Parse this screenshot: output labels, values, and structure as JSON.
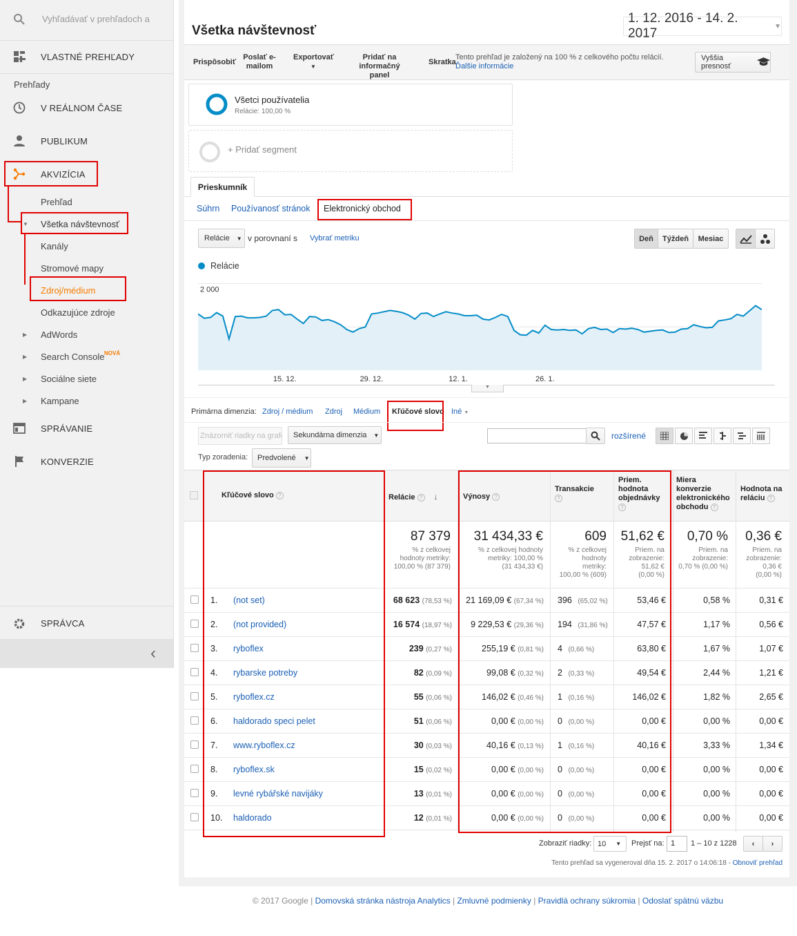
{
  "sidebar": {
    "search_placeholder": "Vyhľadávať v prehľadoch a",
    "custom_reports": "VLASTNÉ PREHĽADY",
    "reports_heading": "Prehľady",
    "realtime": "V REÁLNOM ČASE",
    "audience": "PUBLIKUM",
    "acquisition": "AKVIZÍCIA",
    "overview": "Prehľad",
    "all_traffic": "Všetka návštevnosť",
    "channels": "Kanály",
    "treemaps": "Stromové mapy",
    "source_medium": "Zdroj/médium",
    "referrals": "Odkazujúce zdroje",
    "adwords": "AdWords",
    "search_console": "Search Console",
    "new_badge": "NOVÁ",
    "social": "Sociálne siete",
    "campaigns": "Kampane",
    "behavior": "SPRÁVANIE",
    "conversions": "KONVERZIE",
    "admin": "SPRÁVCA",
    "collapse_glyph": "‹"
  },
  "header": {
    "title": "Všetka návštevnosť",
    "date_range": "1. 12. 2016 - 14. 2. 2017"
  },
  "toolbar": {
    "customize": "Prispôsobiť",
    "email_1": "Poslať e-",
    "email_2": "mailom",
    "export": "Exportovať",
    "dashboard_1": "Pridať na informačný",
    "dashboard_2": "panel",
    "shortcut": "Skratka",
    "sampling_note": "Tento prehľad je založený na 100 % z celkového počtu relácií.",
    "more_info": "Ďalšie informácie",
    "precision": "Vyššia presnosť"
  },
  "segments": {
    "all_users": "Všetci používatelia",
    "sessions_pct": "Relácie: 100,00 %",
    "add_segment": "+ Pridať segment"
  },
  "explorer": {
    "tab": "Prieskumník",
    "subtabs": [
      "Súhrn",
      "Používanosť stránok",
      "Elektronický obchod"
    ]
  },
  "chart_controls": {
    "metric": "Relácie",
    "vs": "v porovnaní s",
    "select_metric": "Vybrať metriku",
    "day": "Deň",
    "week": "Týždeň",
    "month": "Mesiac"
  },
  "chart_data": {
    "type": "line",
    "series": [
      {
        "name": "Relácie",
        "color": "#058dc7",
        "values": [
          1300,
          1200,
          1220,
          1330,
          1250,
          720,
          1240,
          1250,
          1210,
          1210,
          1220,
          1250,
          1380,
          1400,
          1280,
          1290,
          1180,
          1080,
          1240,
          1230,
          1150,
          1170,
          1120,
          1050,
          940,
          880,
          960,
          1000,
          1300,
          1320,
          1350,
          1380,
          1360,
          1330,
          1270,
          1180,
          1310,
          1320,
          1240,
          1300,
          1350,
          1320,
          1300,
          1260,
          1260,
          1270,
          1180,
          1160,
          1220,
          1290,
          1240,
          920,
          820,
          810,
          920,
          860,
          1040,
          940,
          930,
          940,
          920,
          930,
          840,
          960,
          990,
          940,
          950,
          870,
          960,
          950,
          970,
          940,
          880,
          900,
          920,
          930,
          870,
          880,
          950,
          960,
          1050,
          1010,
          980,
          990,
          1140,
          1160,
          1190,
          1290,
          1250,
          1370,
          1490,
          1400
        ]
      }
    ],
    "x_ticks": [
      "15. 12.",
      "29. 12.",
      "12. 1.",
      "26. 1."
    ],
    "y_ticks": [
      "2 000",
      "1 000"
    ],
    "ylim": [
      0,
      2200
    ]
  },
  "dimensions": {
    "label": "Primárna dimenzia:",
    "items": [
      "Zdroj / médium",
      "Zdroj",
      "Médium",
      "Kľúčové slovo",
      "Iné"
    ]
  },
  "table_controls": {
    "plot_rows": "Znázorniť riadky na grafe",
    "secondary": "Sekundárna dimenzia",
    "advanced": "rozšírené",
    "sort_label": "Typ zoradenia:",
    "sort_value": "Predvolené"
  },
  "table": {
    "headers": {
      "keyword": "Kľúčové slovo",
      "sessions": "Relácie",
      "revenue": "Výnosy",
      "transactions": "Transakcie",
      "aov_1": "Priem.",
      "aov_2": "hodnota",
      "aov_3": "objednávky",
      "cr_1": "Miera",
      "cr_2": "konverzie",
      "cr_3": "elektronického",
      "cr_4": "obchodu",
      "per_session_1": "Hodnota na",
      "per_session_2": "reláciu"
    },
    "totals": {
      "sessions": "87 379",
      "sessions_sub": [
        "% z celkovej",
        "hodnoty metriky:",
        "100,00 % (87 379)"
      ],
      "revenue": "31 434,33 €",
      "revenue_sub": [
        "% z celkovej hodnoty",
        "metriky: 100,00 %",
        "(31 434,33 €)"
      ],
      "transactions": "609",
      "transactions_sub": [
        "% z celkovej",
        "hodnoty",
        "metriky:",
        "100,00 % (609)"
      ],
      "aov": "51,62 €",
      "aov_sub": [
        "Priem. na",
        "zobrazenie:",
        "51,62 €",
        "(0,00 %)"
      ],
      "cr": "0,70 %",
      "cr_sub": [
        "Priem. na",
        "zobrazenie:",
        "0,70 % (0,00 %)"
      ],
      "per_session": "0,36 €",
      "per_session_sub": [
        "Priem. na",
        "zobrazenie:",
        "0,36 €",
        "(0,00 %)"
      ]
    },
    "rows": [
      {
        "n": "1.",
        "kw": "(not set)",
        "s": "68 623",
        "sp": "(78,53 %)",
        "rev": "21 169,09 €",
        "revp": "(67,34 %)",
        "t": "396",
        "tp": "(65,02 %)",
        "aov": "53,46 €",
        "cr": "0,58 %",
        "ps": "0,31 €"
      },
      {
        "n": "2.",
        "kw": "(not provided)",
        "s": "16 574",
        "sp": "(18,97 %)",
        "rev": "9 229,53 €",
        "revp": "(29,36 %)",
        "t": "194",
        "tp": "(31,86 %)",
        "aov": "47,57 €",
        "cr": "1,17 %",
        "ps": "0,56 €"
      },
      {
        "n": "3.",
        "kw": "ryboflex",
        "s": "239",
        "sp": "(0,27 %)",
        "rev": "255,19 €",
        "revp": "(0,81 %)",
        "t": "4",
        "tp": "(0,66 %)",
        "aov": "63,80 €",
        "cr": "1,67 %",
        "ps": "1,07 €"
      },
      {
        "n": "4.",
        "kw": "rybarske potreby",
        "s": "82",
        "sp": "(0,09 %)",
        "rev": "99,08 €",
        "revp": "(0,32 %)",
        "t": "2",
        "tp": "(0,33 %)",
        "aov": "49,54 €",
        "cr": "2,44 %",
        "ps": "1,21 €"
      },
      {
        "n": "5.",
        "kw": "ryboflex.cz",
        "s": "55",
        "sp": "(0,06 %)",
        "rev": "146,02 €",
        "revp": "(0,46 %)",
        "t": "1",
        "tp": "(0,16 %)",
        "aov": "146,02 €",
        "cr": "1,82 %",
        "ps": "2,65 €"
      },
      {
        "n": "6.",
        "kw": "haldorado speci pelet",
        "s": "51",
        "sp": "(0,06 %)",
        "rev": "0,00 €",
        "revp": "(0,00 %)",
        "t": "0",
        "tp": "(0,00 %)",
        "aov": "0,00 €",
        "cr": "0,00 %",
        "ps": "0,00 €"
      },
      {
        "n": "7.",
        "kw": "www.ryboflex.cz",
        "s": "30",
        "sp": "(0,03 %)",
        "rev": "40,16 €",
        "revp": "(0,13 %)",
        "t": "1",
        "tp": "(0,16 %)",
        "aov": "40,16 €",
        "cr": "3,33 %",
        "ps": "1,34 €"
      },
      {
        "n": "8.",
        "kw": "ryboflex.sk",
        "s": "15",
        "sp": "(0,02 %)",
        "rev": "0,00 €",
        "revp": "(0,00 %)",
        "t": "0",
        "tp": "(0,00 %)",
        "aov": "0,00 €",
        "cr": "0,00 %",
        "ps": "0,00 €"
      },
      {
        "n": "9.",
        "kw": "levné rybářské navijáky",
        "s": "13",
        "sp": "(0,01 %)",
        "rev": "0,00 €",
        "revp": "(0,00 %)",
        "t": "0",
        "tp": "(0,00 %)",
        "aov": "0,00 €",
        "cr": "0,00 %",
        "ps": "0,00 €"
      },
      {
        "n": "10.",
        "kw": "haldorado",
        "s": "12",
        "sp": "(0,01 %)",
        "rev": "0,00 €",
        "revp": "(0,00 %)",
        "t": "0",
        "tp": "(0,00 %)",
        "aov": "0,00 €",
        "cr": "0,00 %",
        "ps": "0,00 €"
      }
    ]
  },
  "pagination": {
    "show_rows": "Zobraziť riadky:",
    "rows_value": "10",
    "goto": "Prejsť na:",
    "goto_value": "1",
    "range": "1 – 10 z 1228"
  },
  "generated": {
    "text": "Tento prehľad sa vygeneroval dňa 15. 2. 2017 o 14:06:18 -",
    "refresh": "Obnoviť prehľad"
  },
  "footer": {
    "copyright": "© 2017 Google",
    "links": [
      "Domovská stránka nástroja Analytics",
      "Zmluvné podmienky",
      "Pravidlá ochrany súkromia",
      "Odoslať spätnú väzbu"
    ]
  }
}
